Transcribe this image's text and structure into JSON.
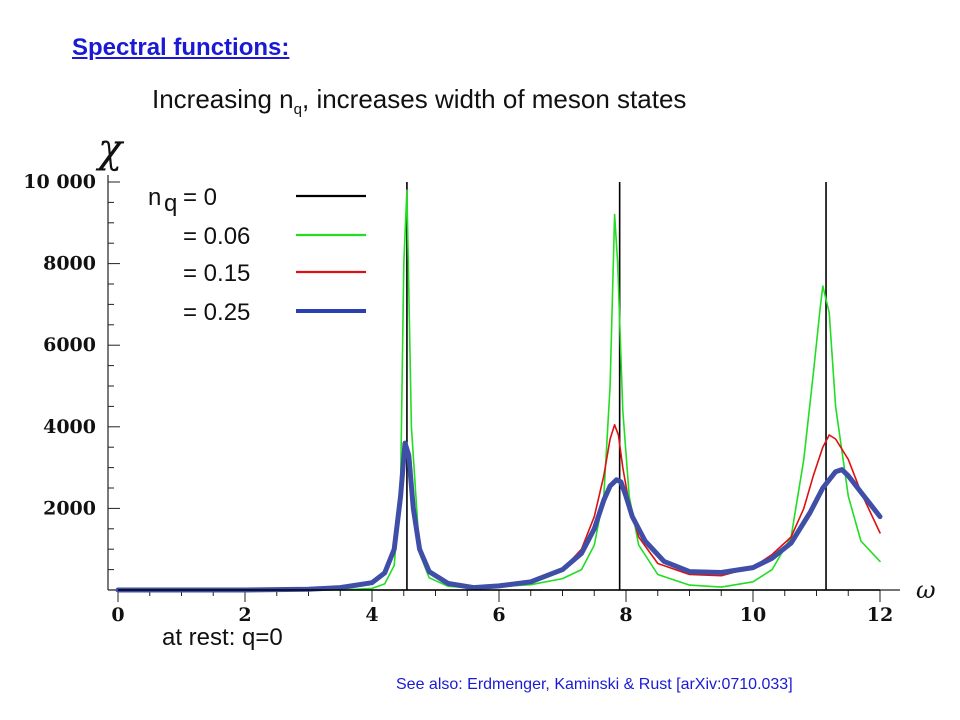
{
  "heading": "Spectral functions:",
  "subtitle": {
    "pre": "Increasing n",
    "sub": "q",
    "post": ", increases width of meson states"
  },
  "footer_left": "at rest: q=0",
  "footer_right": "See also: Erdmenger, Kaminski & Rust [arXiv:0710.033]",
  "chart_data": {
    "type": "line",
    "xlabel": "ω",
    "ylabel": "χ",
    "xlim": [
      0,
      12
    ],
    "ylim": [
      0,
      10000
    ],
    "x_ticks": [
      "0",
      "2",
      "4",
      "6",
      "8",
      "10",
      "12"
    ],
    "y_ticks": [
      "2000",
      "4000",
      "6000",
      "8000",
      "10 000"
    ],
    "legend": {
      "placement": "top-left",
      "prefix_main": "n",
      "prefix_sub": "q",
      "entries": [
        {
          "label": "= 0",
          "color": "#000000"
        },
        {
          "label": "= 0.06",
          "color": "#22dd22"
        },
        {
          "label": "= 0.15",
          "color": "#dd1111"
        },
        {
          "label": "= 0.25",
          "color": "#2a3fb0"
        }
      ]
    },
    "series": [
      {
        "name": "n_q = 0",
        "color": "#000000",
        "style": "delta-peaks",
        "peaks_x": [
          4.55,
          7.9,
          11.15
        ]
      },
      {
        "name": "n_q = 0.06",
        "color": "#22dd22",
        "x": [
          0,
          1,
          2,
          3,
          3.5,
          4,
          4.2,
          4.35,
          4.45,
          4.5,
          4.55,
          4.62,
          4.75,
          4.9,
          5.2,
          5.6,
          6,
          6.5,
          7,
          7.3,
          7.5,
          7.65,
          7.75,
          7.82,
          7.87,
          7.95,
          8.05,
          8.2,
          8.5,
          9,
          9.5,
          10,
          10.3,
          10.6,
          10.8,
          10.95,
          11.05,
          11.1,
          11.2,
          11.3,
          11.5,
          11.7,
          12
        ],
        "y": [
          0,
          0,
          0,
          0,
          0,
          40,
          150,
          600,
          2600,
          8000,
          9800,
          4000,
          900,
          300,
          90,
          50,
          80,
          130,
          280,
          500,
          1100,
          2300,
          5000,
          9200,
          8000,
          4400,
          2300,
          1100,
          380,
          120,
          70,
          200,
          500,
          1300,
          3200,
          5300,
          6800,
          7450,
          6800,
          4500,
          2300,
          1200,
          700
        ]
      },
      {
        "name": "n_q = 0.15",
        "color": "#dd1111",
        "x": [
          0,
          1,
          2,
          3,
          3.5,
          4,
          4.2,
          4.35,
          4.45,
          4.52,
          4.58,
          4.65,
          4.75,
          4.9,
          5.2,
          5.6,
          6,
          6.5,
          7,
          7.3,
          7.5,
          7.65,
          7.75,
          7.82,
          7.88,
          7.95,
          8.05,
          8.2,
          8.5,
          9,
          9.5,
          10,
          10.3,
          10.6,
          10.8,
          10.95,
          11.1,
          11.2,
          11.3,
          11.5,
          11.7,
          12
        ],
        "y": [
          0,
          0,
          0,
          20,
          50,
          150,
          380,
          900,
          2200,
          3500,
          3300,
          2000,
          1000,
          450,
          150,
          60,
          80,
          180,
          500,
          1000,
          1800,
          2800,
          3700,
          4050,
          3800,
          3000,
          2100,
          1300,
          650,
          380,
          350,
          560,
          870,
          1300,
          2000,
          2800,
          3500,
          3800,
          3700,
          3200,
          2400,
          1400
        ]
      },
      {
        "name": "n_q = 0.25",
        "color": "#3f4fa8",
        "x": [
          0,
          1,
          2,
          3,
          3.5,
          4,
          4.2,
          4.35,
          4.45,
          4.52,
          4.58,
          4.65,
          4.75,
          4.9,
          5.2,
          5.6,
          6,
          6.5,
          7,
          7.3,
          7.5,
          7.65,
          7.75,
          7.85,
          7.92,
          8.0,
          8.1,
          8.3,
          8.6,
          9,
          9.5,
          10,
          10.3,
          10.6,
          10.9,
          11.1,
          11.3,
          11.4,
          11.5,
          11.7,
          12
        ],
        "y": [
          0,
          0,
          0,
          20,
          60,
          180,
          420,
          1000,
          2300,
          3600,
          3300,
          2000,
          1000,
          450,
          160,
          60,
          100,
          200,
          500,
          900,
          1500,
          2200,
          2550,
          2700,
          2650,
          2300,
          1800,
          1200,
          700,
          450,
          430,
          550,
          780,
          1150,
          1900,
          2500,
          2900,
          2950,
          2800,
          2400,
          1800
        ]
      }
    ]
  }
}
